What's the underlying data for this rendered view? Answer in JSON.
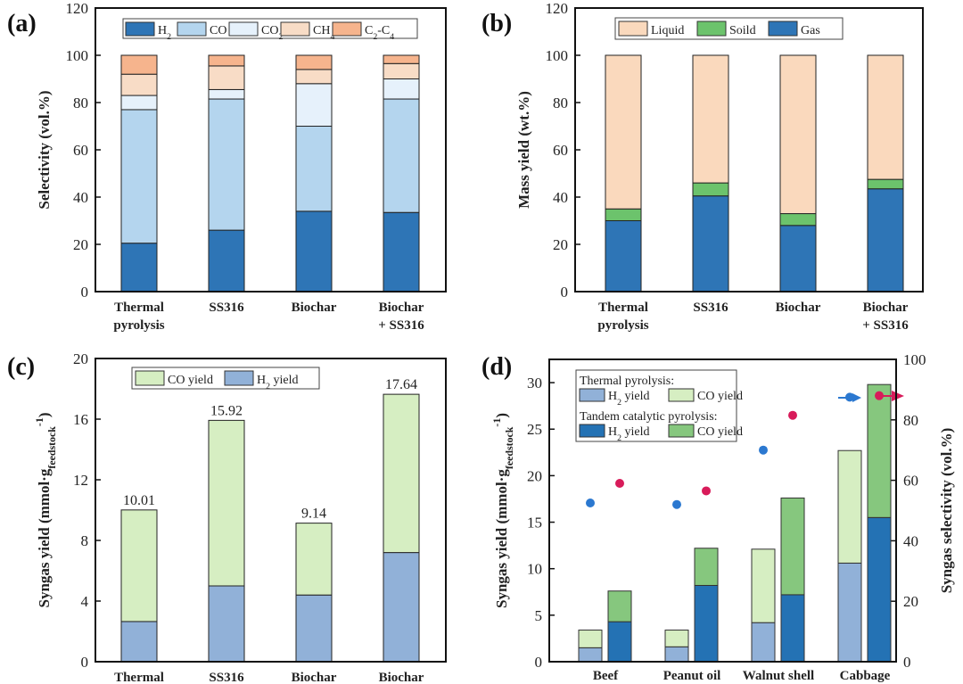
{
  "chart_data": [
    {
      "panel": "(a)",
      "type": "bar",
      "stacked": true,
      "ylabel": "Selectivity (vol.%)",
      "ylim": [
        0,
        120
      ],
      "yticks": [
        0,
        20,
        40,
        60,
        80,
        100,
        120
      ],
      "categories": [
        "Thermal|pyrolysis",
        "SS316",
        "Biochar",
        "Biochar|+ SS316"
      ],
      "legend_position": "top",
      "series": [
        {
          "name": "H2",
          "color": "#2e75b6",
          "values": [
            20.5,
            26,
            34,
            33.5
          ]
        },
        {
          "name": "CO",
          "color": "#b4d5ee",
          "values": [
            56.5,
            55.5,
            36,
            48
          ]
        },
        {
          "name": "CO2",
          "color": "#e6f1fb",
          "values": [
            6,
            4,
            18,
            8.5
          ]
        },
        {
          "name": "CH4",
          "color": "#f8dcc6",
          "values": [
            9,
            10,
            6,
            6.5
          ]
        },
        {
          "name": "C2-C4",
          "color": "#f6b48d",
          "values": [
            8,
            4.5,
            6,
            3.5
          ]
        }
      ]
    },
    {
      "panel": "(b)",
      "type": "bar",
      "stacked": true,
      "ylabel": "Mass yield (wt.%)",
      "ylim": [
        0,
        120
      ],
      "yticks": [
        0,
        20,
        40,
        60,
        80,
        100,
        120
      ],
      "categories": [
        "Thermal|pyrolysis",
        "SS316",
        "Biochar",
        "Biochar|+ SS316"
      ],
      "legend_position": "top",
      "series": [
        {
          "name": "Gas",
          "color": "#2e75b6",
          "values": [
            30,
            40.5,
            28,
            43.5
          ]
        },
        {
          "name": "Soild",
          "color": "#6cc36c",
          "values": [
            5,
            5.5,
            5,
            4
          ]
        },
        {
          "name": "Liquid",
          "color": "#fad9bd",
          "values": [
            65,
            54,
            67,
            52.5
          ]
        }
      ],
      "legend_order": [
        "Liquid",
        "Soild",
        "Gas"
      ]
    },
    {
      "panel": "(c)",
      "type": "bar",
      "stacked": true,
      "ylabel": "Syngas yield (mmol·g feedstock -1)",
      "ylim": [
        0,
        20
      ],
      "yticks": [
        0,
        4,
        8,
        12,
        16,
        20
      ],
      "categories": [
        "Thermal|pyrolysis",
        "SS316",
        "Biochar",
        "Biochar|+ SS316"
      ],
      "legend_position": "top-left",
      "series": [
        {
          "name": "H2 yield",
          "color": "#91b1d8",
          "values": [
            2.65,
            5.0,
            4.4,
            7.2
          ]
        },
        {
          "name": "CO yield",
          "color": "#d6eec2",
          "values": [
            7.36,
            10.92,
            4.74,
            10.44
          ]
        }
      ],
      "totals": [
        "10.01",
        "15.92",
        "9.14",
        "17.64"
      ],
      "legend_order": [
        "CO yield",
        "H2 yield"
      ]
    },
    {
      "panel": "(d)",
      "type": "bar",
      "stacked": true,
      "ylabel": "Syngas yield (mmol·g feedstock -1)",
      "y2label": "Syngas selectivity (vol.%)",
      "ylim": [
        0,
        32.5
      ],
      "yticks": [
        0,
        5,
        10,
        15,
        20,
        25,
        30
      ],
      "y2lim": [
        0,
        100
      ],
      "y2ticks": [
        0,
        20,
        40,
        60,
        80,
        100
      ],
      "categories": [
        "Beef",
        "Peanut oil",
        "Walnut shell",
        "Cabbage"
      ],
      "legend_position": "top-left",
      "legend_headers": [
        "Thermal pyrolysis:",
        "Tandem catalytic pyrolysis:"
      ],
      "series": [
        {
          "name": "Thermal H2 yield",
          "label": "H2 yield",
          "color": "#91b1d8",
          "values": [
            1.5,
            1.6,
            4.2,
            10.6
          ]
        },
        {
          "name": "Thermal CO yield",
          "label": "CO yield",
          "color": "#d6eec2",
          "values": [
            1.9,
            1.8,
            7.9,
            12.1
          ]
        },
        {
          "name": "Tandem H2 yield",
          "label": "H2 yield",
          "color": "#2472b4",
          "values": [
            4.3,
            8.2,
            7.2,
            15.5
          ]
        },
        {
          "name": "Tandem CO yield",
          "label": "CO yield",
          "color": "#86c77e",
          "values": [
            3.3,
            4.0,
            10.4,
            14.3
          ]
        }
      ],
      "selectivity": [
        {
          "name": "Thermal selectivity",
          "color": "#2b78d0",
          "values": [
            52.5,
            52,
            70,
            87.5
          ]
        },
        {
          "name": "Tandem selectivity",
          "color": "#d81b5a",
          "values": [
            59,
            56.5,
            81.5,
            88
          ]
        }
      ]
    }
  ]
}
